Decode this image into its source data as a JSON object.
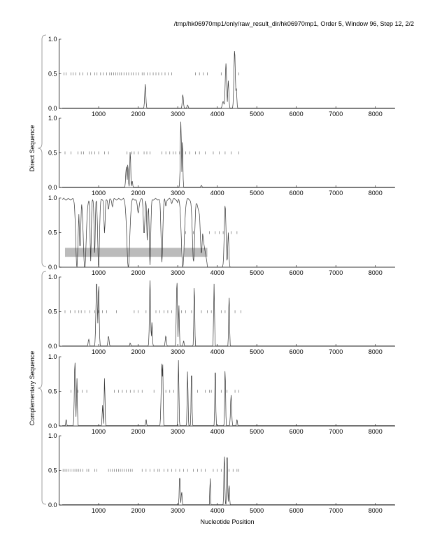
{
  "title": "/tmp/hk06970mp1/only/raw_result_dir/hk06970mp1, Order 5, Window 96, Step 12, 2/2",
  "chart_data": {
    "type": "line",
    "xlabel": "Nucleotide Position",
    "group_labels": [
      "Direct Sequence",
      "Complementary Sequence"
    ],
    "xlim": [
      0,
      8500
    ],
    "ylim": [
      0,
      1
    ],
    "xticks": [
      1000,
      2000,
      3000,
      4000,
      5000,
      6000,
      7000,
      8000
    ],
    "yticks": [
      "0.0",
      "0.5",
      "1.0"
    ],
    "panels": [
      {
        "name": "direct-frame-1",
        "base": 0,
        "peaks": [
          [
            2180,
            0.35,
            20
          ],
          [
            3130,
            0.2,
            20
          ],
          [
            3250,
            0.05,
            20
          ],
          [
            4150,
            0.1,
            30
          ],
          [
            4220,
            0.65,
            25
          ],
          [
            4280,
            0.4,
            20
          ],
          [
            4440,
            0.85,
            25
          ],
          [
            4480,
            0.3,
            20
          ]
        ],
        "stops": [
          120,
          180,
          300,
          350,
          420,
          520,
          600,
          720,
          800,
          900,
          960,
          1050,
          1120,
          1200,
          1280,
          1330,
          1380,
          1430,
          1480,
          1530,
          1580,
          1640,
          1700,
          1760,
          1830,
          1880,
          1950,
          2020,
          2100,
          2150,
          2230,
          2300,
          2380,
          2450,
          2520,
          2600,
          2680,
          2760,
          2850,
          3450,
          3550,
          3650,
          3750,
          4100,
          4550
        ]
      },
      {
        "name": "direct-frame-2",
        "base": 0,
        "peaks": [
          [
            1700,
            0.3,
            20
          ],
          [
            1740,
            0.35,
            15
          ],
          [
            1800,
            0.55,
            15
          ],
          [
            1850,
            0.1,
            15
          ],
          [
            3080,
            0.95,
            20
          ],
          [
            3120,
            0.7,
            15
          ],
          [
            3600,
            0.03,
            20
          ]
        ],
        "stops": [
          150,
          300,
          480,
          560,
          620,
          760,
          820,
          900,
          1000,
          1150,
          1250,
          1720,
          1840,
          1900,
          2000,
          2150,
          2220,
          2300,
          2600,
          2700,
          2800,
          2880,
          2950,
          3050,
          3200,
          3300,
          3450,
          3550,
          3700,
          3900,
          4050,
          4200,
          4350,
          4550
        ]
      },
      {
        "name": "direct-frame-3",
        "base": 1,
        "peaks": [
          [
            450,
            1,
            40
          ],
          [
            530,
            0.7,
            25
          ],
          [
            650,
            1,
            50
          ],
          [
            800,
            0.9,
            20
          ],
          [
            900,
            0.8,
            20
          ],
          [
            1000,
            1,
            30
          ],
          [
            1150,
            0.5,
            20
          ],
          [
            1250,
            0.15,
            20
          ],
          [
            1350,
            0.1,
            20
          ],
          [
            1750,
            1,
            50
          ],
          [
            2000,
            0.2,
            30
          ],
          [
            2150,
            0.5,
            25
          ],
          [
            2230,
            0.6,
            20
          ],
          [
            2300,
            0.95,
            25
          ],
          [
            2600,
            0.9,
            30
          ],
          [
            2700,
            0.1,
            20
          ],
          [
            2850,
            0.05,
            20
          ],
          [
            3000,
            0.05,
            20
          ],
          [
            3130,
            1,
            50
          ],
          [
            3400,
            0.9,
            40
          ],
          [
            3600,
            0.8,
            40
          ],
          [
            3800,
            1,
            200
          ],
          [
            4400,
            1,
            150
          ]
        ],
        "dips_peaks": [
          [
            4200,
            0.9,
            30
          ],
          [
            4280,
            0.5,
            20
          ]
        ],
        "stops": [
          3200,
          3400,
          3800,
          3950,
          4050,
          4150,
          4350,
          4500
        ],
        "bars": [
          [
            150,
            3100
          ],
          [
            3150,
            3750
          ]
        ]
      },
      {
        "name": "complement-frame-1",
        "base": 0,
        "peaks": [
          [
            750,
            0.1,
            20
          ],
          [
            950,
            0.95,
            25
          ],
          [
            1000,
            0.9,
            20
          ],
          [
            1250,
            0.15,
            20
          ],
          [
            1800,
            0.05,
            15
          ],
          [
            2300,
            0.95,
            20
          ],
          [
            2350,
            0.35,
            15
          ],
          [
            2700,
            0.15,
            20
          ],
          [
            2980,
            0.95,
            20
          ],
          [
            3030,
            0.6,
            15
          ],
          [
            3150,
            0.08,
            15
          ],
          [
            3420,
            0.9,
            15
          ],
          [
            3920,
            0.9,
            15
          ],
          [
            4300,
            0.75,
            15
          ]
        ],
        "stops": [
          150,
          280,
          400,
          500,
          560,
          650,
          780,
          900,
          1000,
          1100,
          1200,
          1450,
          1900,
          2000,
          2200,
          2450,
          2550,
          2650,
          2750,
          2850,
          3100,
          3200,
          3350,
          3600,
          3750,
          3850,
          4100,
          4200,
          4450,
          4600
        ]
      },
      {
        "name": "complement-frame-2",
        "base": 0,
        "peaks": [
          [
            180,
            0.1,
            15
          ],
          [
            400,
            0.95,
            20
          ],
          [
            450,
            0.7,
            15
          ],
          [
            1100,
            0.3,
            15
          ],
          [
            1150,
            0.7,
            15
          ],
          [
            2200,
            0.1,
            15
          ],
          [
            2600,
            0.9,
            25
          ],
          [
            2620,
            0.95,
            15
          ],
          [
            3020,
            0.95,
            15
          ],
          [
            3250,
            0.8,
            15
          ],
          [
            3350,
            0.85,
            15
          ],
          [
            3950,
            0.9,
            15
          ],
          [
            4200,
            0.85,
            15
          ],
          [
            4350,
            0.45,
            20
          ],
          [
            4500,
            0.1,
            15
          ]
        ],
        "stops": [
          300,
          480,
          580,
          700,
          1400,
          1500,
          1600,
          1700,
          1800,
          1900,
          2000,
          2100,
          2400,
          2700,
          2800,
          2900,
          3500,
          3700,
          3800,
          3850,
          4100,
          4250,
          4450,
          4550
        ]
      },
      {
        "name": "complement-frame-3",
        "base": 0,
        "peaks": [
          [
            3050,
            0.45,
            15
          ],
          [
            3100,
            0.2,
            15
          ],
          [
            3820,
            0.45,
            10
          ],
          [
            4180,
            0.75,
            15
          ],
          [
            4250,
            0.8,
            15
          ],
          [
            4300,
            0.3,
            15
          ]
        ],
        "stops": [
          100,
          150,
          200,
          250,
          300,
          350,
          400,
          450,
          500,
          550,
          600,
          700,
          750,
          900,
          950,
          1250,
          1300,
          1350,
          1400,
          1450,
          1500,
          1550,
          1600,
          1650,
          1700,
          1750,
          1800,
          1850,
          2100,
          2200,
          2300,
          2400,
          2500,
          2550,
          2650,
          2750,
          2850,
          2950,
          3050,
          3150,
          3250,
          3400,
          3500,
          3600,
          3700,
          3900,
          4000,
          4100,
          4300,
          4400,
          4500,
          4550
        ]
      }
    ]
  }
}
